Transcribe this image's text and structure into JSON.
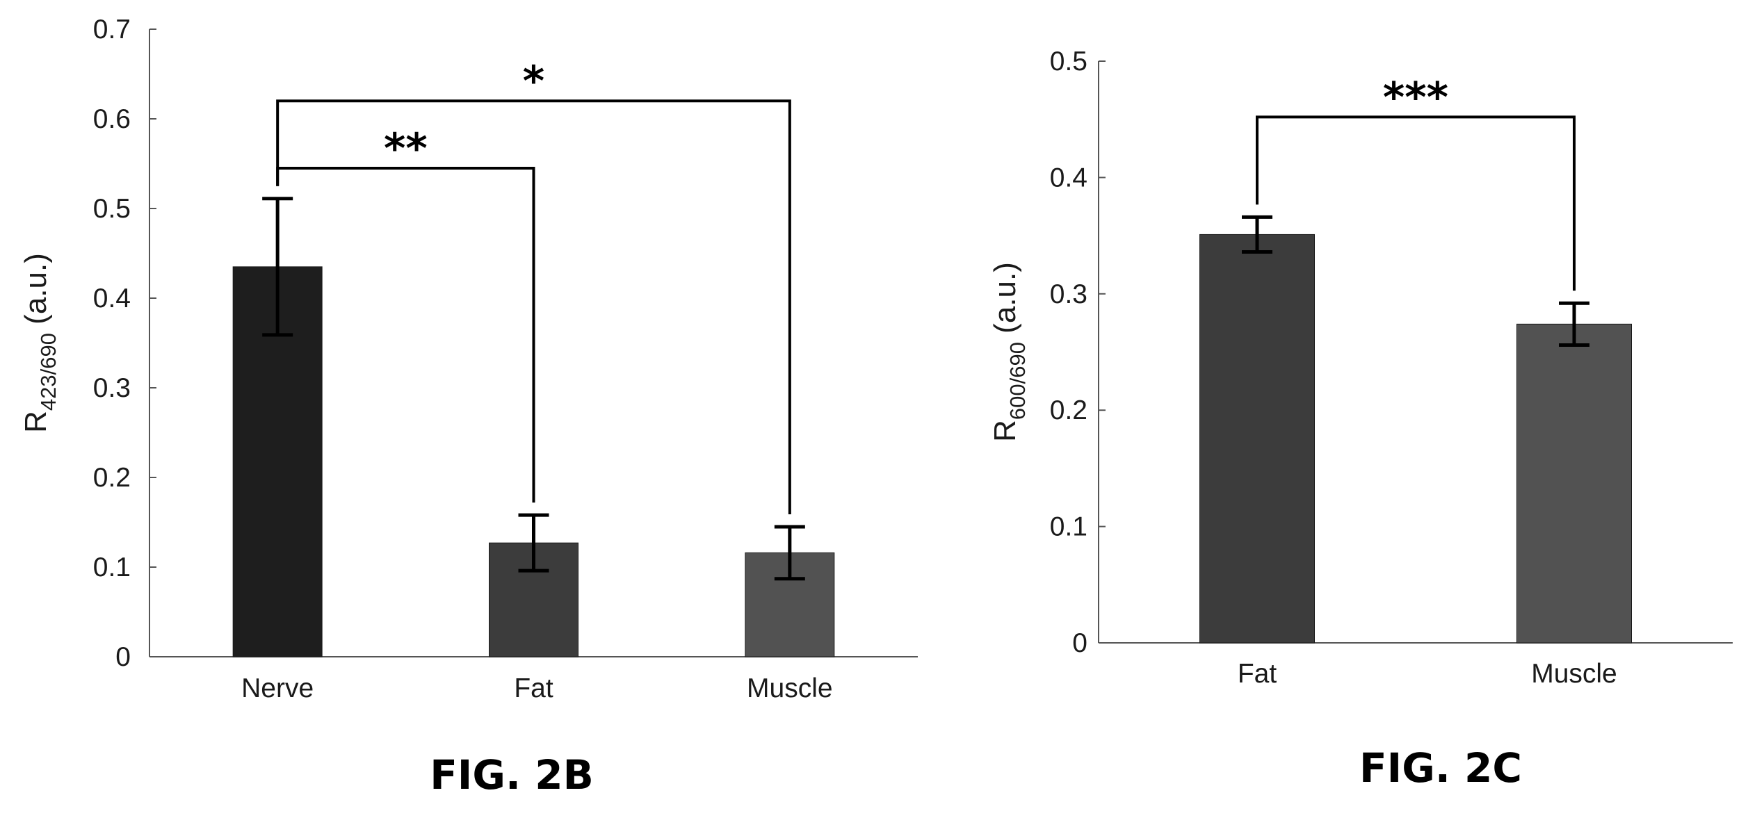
{
  "chart_data": [
    {
      "type": "bar",
      "categories": [
        "Nerve",
        "Fat",
        "Muscle"
      ],
      "values": [
        0.435,
        0.127,
        0.116
      ],
      "errors": [
        0.076,
        0.031,
        0.029
      ],
      "colors": [
        "#1e1e1e",
        "#3c3c3c",
        "#525252"
      ],
      "ylim": [
        0,
        0.7
      ],
      "yticks": [
        "0",
        "0.1",
        "0.2",
        "0.3",
        "0.4",
        "0.5",
        "0.6",
        "0.7"
      ],
      "ylabel": {
        "main": "R",
        "sub": "423/690",
        "unit": " (a.u.)"
      },
      "xlabel": "",
      "grid": false,
      "caption": "FIG. 2B",
      "significance": [
        {
          "label": "**",
          "from": "Nerve",
          "to": "Fat",
          "y": 0.545
        },
        {
          "label": "*",
          "from": "Nerve",
          "to": "Muscle",
          "y": 0.62
        }
      ]
    },
    {
      "type": "bar",
      "categories": [
        "Fat",
        "Muscle"
      ],
      "values": [
        0.351,
        0.274
      ],
      "errors": [
        0.015,
        0.018
      ],
      "colors": [
        "#3c3c3c",
        "#525252"
      ],
      "ylim": [
        0,
        0.5
      ],
      "yticks": [
        "0",
        "0.1",
        "0.2",
        "0.3",
        "0.4",
        "0.5"
      ],
      "ylabel": {
        "main": "R",
        "sub": "600/690",
        "unit": " (a.u.)"
      },
      "xlabel": "",
      "grid": false,
      "caption": "FIG. 2C",
      "significance": [
        {
          "label": "***",
          "from": "Fat",
          "to": "Muscle",
          "y": 0.452
        }
      ]
    }
  ]
}
